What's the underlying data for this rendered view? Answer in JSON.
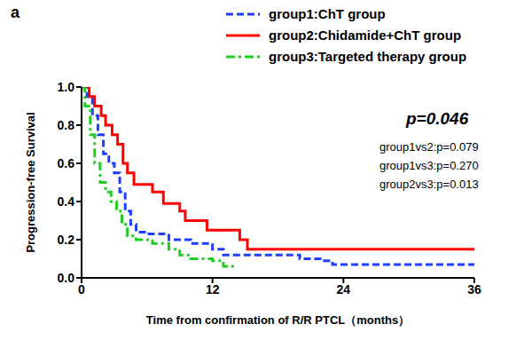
{
  "chart_data": {
    "type": "line",
    "title": "a",
    "x_label": "Time from confirmation of R/R PTCL（months）",
    "y_label": "Progression-free Survival",
    "annotations": [
      "p=0.046",
      "group1vs2:p=0.079",
      "group1vs3:p=0.270",
      "group2vs3:p=0.013"
    ],
    "xlim": [
      0,
      36
    ],
    "xticks": [
      0,
      12,
      24,
      36
    ],
    "ylim": [
      0,
      1
    ],
    "yticks": [
      {
        "value": 0,
        "label": "0.0"
      },
      0.2,
      0.4,
      0.6,
      0.8,
      {
        "value": 1,
        "label": "1.0"
      }
    ],
    "legend": "top right",
    "series": [
      {
        "name": "group1:ChT group",
        "color": "#1f3fff",
        "line_style": "dashed",
        "x": [
          0,
          0.5,
          1,
          1.5,
          2,
          2.5,
          3,
          3.5,
          4,
          4.5,
          5,
          6,
          8,
          10,
          12,
          13,
          20,
          22,
          23,
          36
        ],
        "values": [
          1.0,
          0.95,
          0.85,
          0.75,
          0.65,
          0.6,
          0.55,
          0.45,
          0.35,
          0.28,
          0.24,
          0.23,
          0.2,
          0.18,
          0.15,
          0.12,
          0.1,
          0.09,
          0.07,
          0.07
        ]
      },
      {
        "name": "group2:Chidamide+ChT group",
        "color": "#ff0000",
        "line_style": "solid",
        "x": [
          0,
          0.7,
          1.2,
          1.8,
          2.2,
          2.8,
          3.3,
          3.8,
          4.2,
          4.8,
          6.5,
          7.5,
          9,
          9.5,
          11.5,
          14.5,
          15.2,
          36
        ],
        "values": [
          1.0,
          0.95,
          0.9,
          0.85,
          0.8,
          0.75,
          0.7,
          0.6,
          0.55,
          0.49,
          0.45,
          0.39,
          0.35,
          0.3,
          0.25,
          0.2,
          0.15,
          0.15
        ]
      },
      {
        "name": "group3:Targeted therapy group",
        "color": "#22cc22",
        "line_style": "dashdot",
        "x": [
          0,
          0.3,
          0.8,
          1.2,
          1.7,
          2.2,
          2.7,
          3.2,
          3.7,
          4.2,
          5,
          6.5,
          8,
          9,
          10,
          12,
          13,
          14
        ],
        "values": [
          1.0,
          0.9,
          0.75,
          0.6,
          0.5,
          0.45,
          0.4,
          0.35,
          0.28,
          0.22,
          0.2,
          0.18,
          0.15,
          0.12,
          0.1,
          0.09,
          0.06,
          0.06
        ]
      }
    ]
  }
}
